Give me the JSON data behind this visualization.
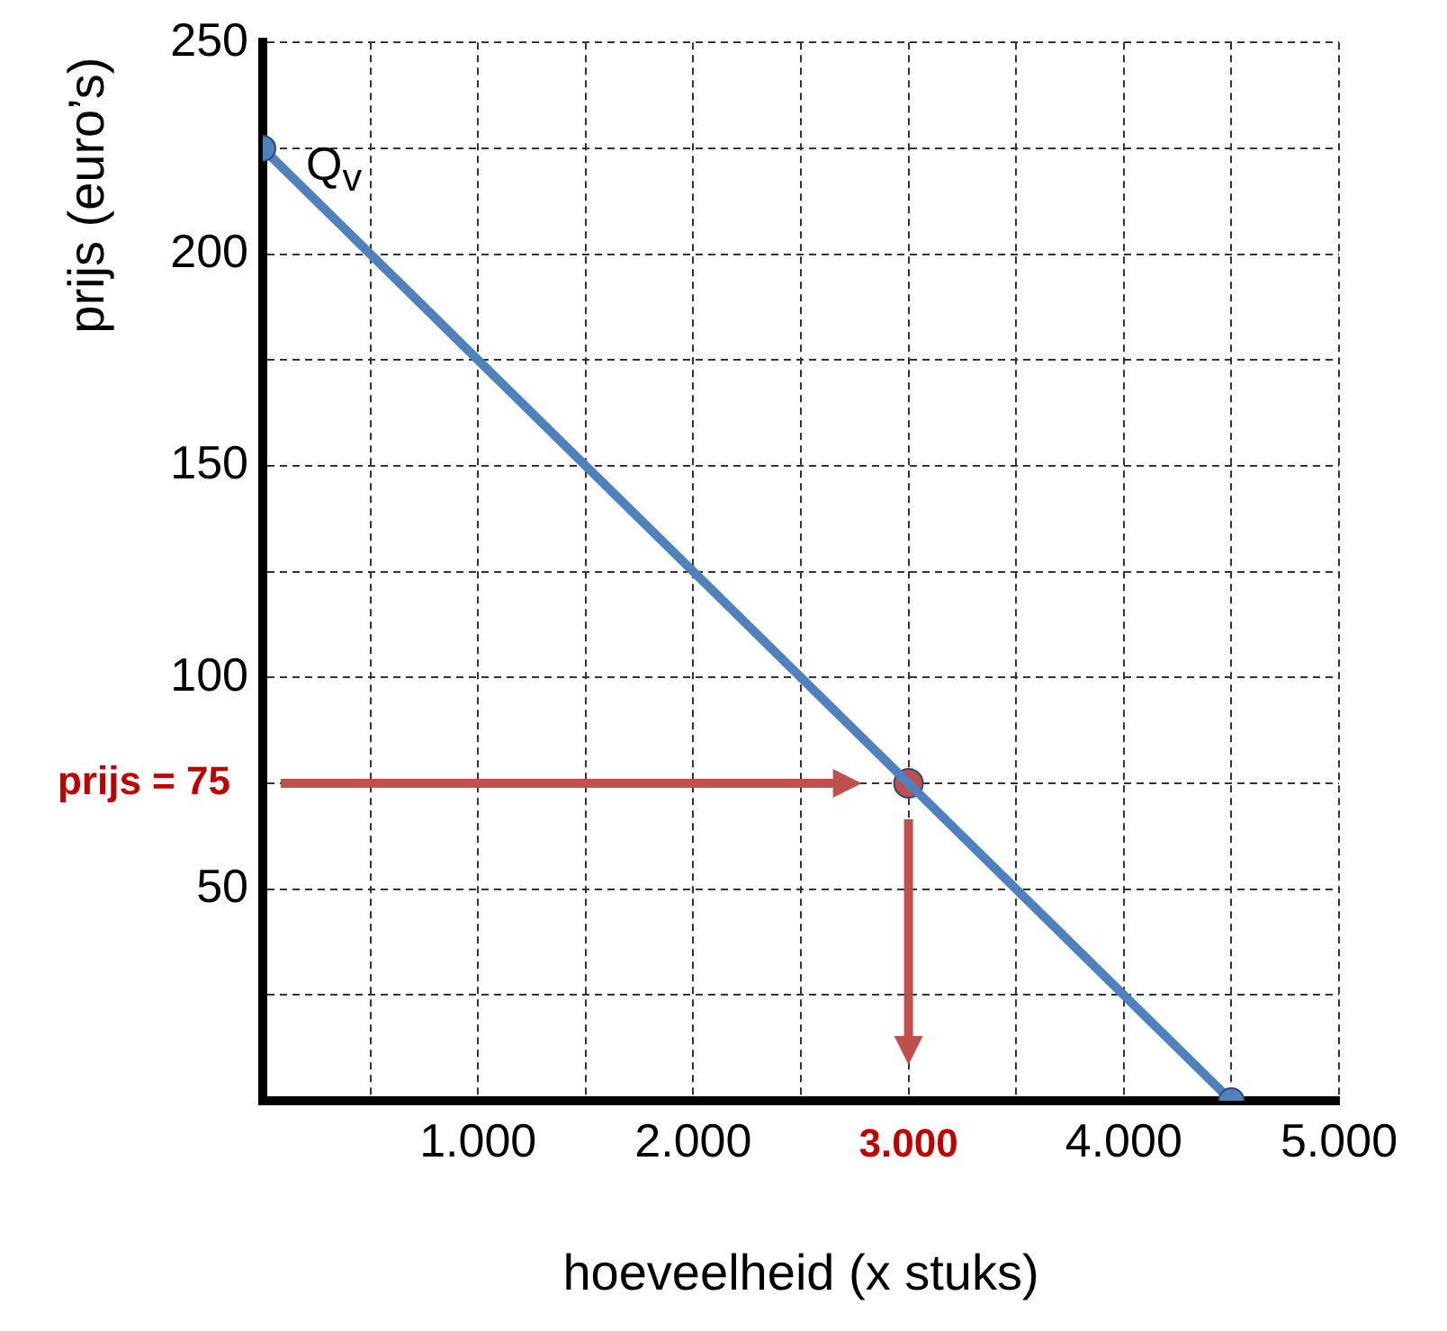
{
  "chart_data": {
    "type": "line",
    "xlabel": "hoeveelheid (x stuks)",
    "ylabel": "prijs (euro’s)",
    "xlim": [
      0,
      5000
    ],
    "ylim": [
      0,
      250
    ],
    "xticks": [
      {
        "value": 500,
        "label": null
      },
      {
        "value": 1000,
        "label": "1.000"
      },
      {
        "value": 1500,
        "label": null
      },
      {
        "value": 2000,
        "label": "2.000"
      },
      {
        "value": 2500,
        "label": null
      },
      {
        "value": 3000,
        "label": null
      },
      {
        "value": 3500,
        "label": null
      },
      {
        "value": 4000,
        "label": "4.000"
      },
      {
        "value": 4500,
        "label": null
      },
      {
        "value": 5000,
        "label": "5.000"
      }
    ],
    "yticks": [
      {
        "value": 25,
        "label": null
      },
      50,
      {
        "value": 75,
        "label": null
      },
      100,
      {
        "value": 125,
        "label": null
      },
      150,
      {
        "value": 175,
        "label": null
      },
      200,
      {
        "value": 225,
        "label": null
      },
      250
    ],
    "grid": true,
    "legend": false,
    "marker": "circle",
    "series": [
      {
        "name": "Q$_{v}$",
        "color": "#4f81bd",
        "x": [
          0,
          4500
        ],
        "values": [
          225,
          0
        ]
      },
      {
        "type": "scatter",
        "color": "#c0504d",
        "x": [
          3000
        ],
        "values": [
          75
        ]
      }
    ],
    "annotations": [
      "prijs = 75",
      "3.000"
    ]
  }
}
